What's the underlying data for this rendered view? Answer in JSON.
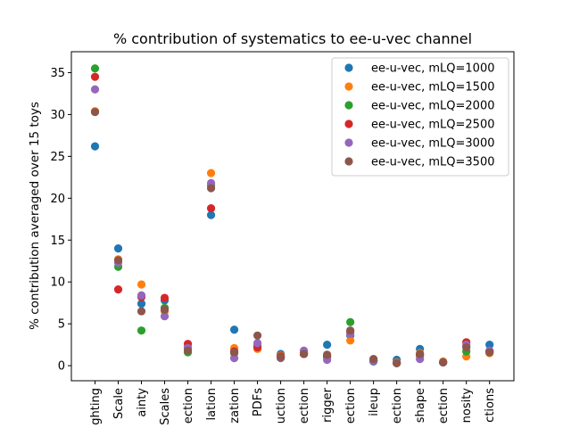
{
  "chart_data": {
    "type": "scatter",
    "title": "% contribution of systematics to ee-u-vec channel",
    "xlabel": "",
    "ylabel": "% contribution averaged over 15 toys",
    "ylim": [
      -1.8,
      37.5
    ],
    "yticks": [
      0,
      5,
      10,
      15,
      20,
      25,
      30,
      35
    ],
    "grid": false,
    "legend_position": "top-right",
    "categories": [
      "ghting",
      "Scale",
      "ainty",
      "Scales",
      "ection",
      "lation",
      "zation",
      "PDFs",
      "uction",
      "ection",
      "rigger",
      "ection",
      "ileup",
      "ection",
      "shape",
      "ection",
      "nosity",
      "ctions"
    ],
    "series": [
      {
        "name": "ee-u-vec, mLQ=1000",
        "color": "#1f77b4",
        "values": [
          26.2,
          14.0,
          7.4,
          7.8,
          2.2,
          18.0,
          4.3,
          2.3,
          1.4,
          1.5,
          2.5,
          3.6,
          0.5,
          0.7,
          2.0,
          0.4,
          2.3,
          2.5
        ]
      },
      {
        "name": "ee-u-vec, mLQ=1500",
        "color": "#ff7f0e",
        "values": [
          30.4,
          12.7,
          9.7,
          6.5,
          2.0,
          23.0,
          2.1,
          2.0,
          1.2,
          1.6,
          1.3,
          3.0,
          0.7,
          0.4,
          1.5,
          0.5,
          1.1,
          1.5
        ]
      },
      {
        "name": "ee-u-vec, mLQ=2000",
        "color": "#2ca02c",
        "values": [
          35.5,
          11.8,
          4.2,
          6.9,
          1.6,
          21.5,
          1.5,
          2.4,
          1.0,
          1.4,
          1.0,
          5.2,
          0.6,
          0.3,
          1.2,
          0.4,
          1.7,
          1.7
        ]
      },
      {
        "name": "ee-u-vec, mLQ=2500",
        "color": "#d62728",
        "values": [
          34.5,
          9.1,
          8.2,
          8.1,
          2.6,
          18.8,
          1.7,
          2.2,
          1.1,
          1.4,
          1.1,
          4.0,
          0.6,
          0.3,
          1.3,
          0.4,
          2.8,
          1.7
        ]
      },
      {
        "name": "ee-u-vec, mLQ=3000",
        "color": "#9467bd",
        "values": [
          33.0,
          12.3,
          8.4,
          5.9,
          2.1,
          21.8,
          0.9,
          2.7,
          0.9,
          1.8,
          0.7,
          3.8,
          0.6,
          0.3,
          0.8,
          0.4,
          2.5,
          1.8
        ]
      },
      {
        "name": "ee-u-vec, mLQ=3500",
        "color": "#8c564b",
        "values": [
          30.3,
          12.6,
          6.5,
          6.7,
          1.8,
          21.2,
          1.6,
          3.6,
          1.0,
          1.4,
          1.3,
          4.2,
          0.8,
          0.3,
          1.4,
          0.4,
          2.2,
          1.6
        ]
      }
    ]
  }
}
